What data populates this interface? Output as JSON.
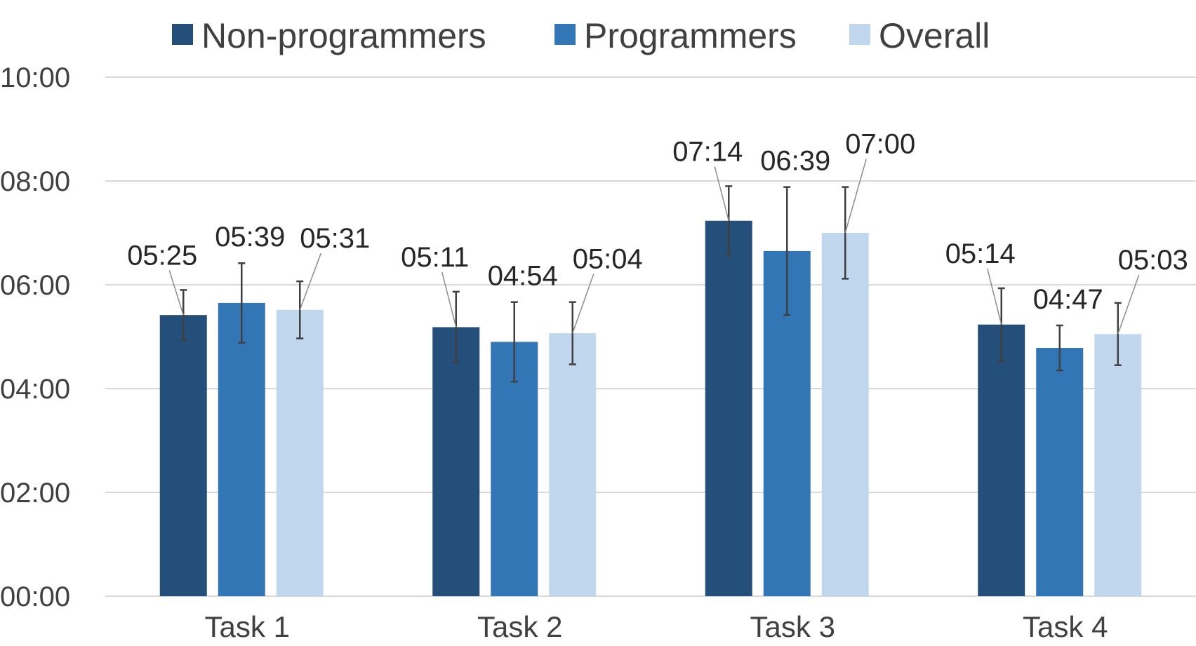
{
  "chart_data": {
    "type": "bar",
    "categories": [
      "Task 1",
      "Task 2",
      "Task 3",
      "Task 4"
    ],
    "y_ticks": [
      "00:00",
      "02:00",
      "04:00",
      "06:00",
      "08:00",
      "10:00"
    ],
    "ylim_seconds": [
      0,
      600
    ],
    "grid": true,
    "legend_position": "top",
    "series": [
      {
        "name": "Non-programmers",
        "color": "#234f7a",
        "values_seconds": [
          325,
          311,
          434,
          314
        ],
        "labels": [
          "05:25",
          "05:11",
          "07:14",
          "05:14"
        ],
        "error_seconds": [
          29,
          41,
          40,
          42
        ]
      },
      {
        "name": "Programmers",
        "color": "#3276b6",
        "values_seconds": [
          339,
          294,
          399,
          287
        ],
        "labels": [
          "05:39",
          "04:54",
          "06:39",
          "04:47"
        ],
        "error_seconds": [
          46,
          46,
          74,
          26
        ]
      },
      {
        "name": "Overall",
        "color": "#c0d7ed",
        "values_seconds": [
          331,
          304,
          420,
          303
        ],
        "labels": [
          "05:31",
          "05:04",
          "07:00",
          "05:03"
        ],
        "error_seconds": [
          33,
          36,
          53,
          36
        ]
      }
    ]
  }
}
